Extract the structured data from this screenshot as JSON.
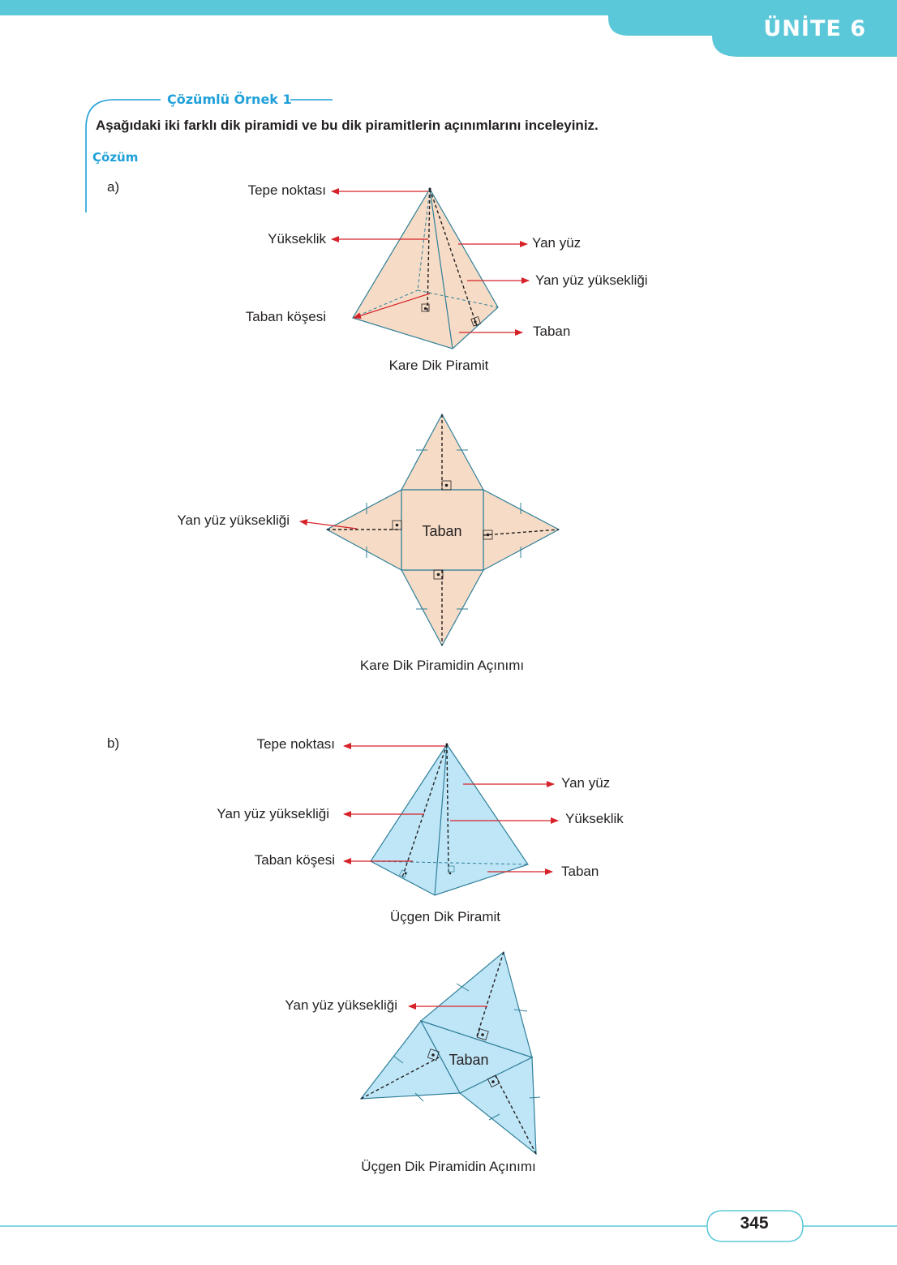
{
  "header": {
    "unit": "ÜNİTE 6",
    "accent_color": "#5bc8d9"
  },
  "example": {
    "title": "Çözümlü Örnek 1",
    "question": "Aşağıdaki iki farklı dik piramidi ve bu dik piramitlerin açınımlarını inceleyiniz.",
    "solution_label": "Çözüm"
  },
  "part_a": {
    "label": "a)",
    "pyramid": {
      "apex_label": "Tepe noktası",
      "height_label": "Yükseklik",
      "base_vertex_label": "Taban köşesi",
      "lateral_face_label": "Yan yüz",
      "slant_height_label": "Yan yüz yüksekliği",
      "base_label": "Taban",
      "caption": "Kare Dik Piramit",
      "fill_color": "#f6dcc6"
    },
    "net": {
      "slant_height_label": "Yan yüz yüksekliği",
      "base_label": "Taban",
      "caption": "Kare Dik Piramidin Açınımı"
    }
  },
  "part_b": {
    "label": "b)",
    "pyramid": {
      "apex_label": "Tepe noktası",
      "lateral_face_label": "Yan yüz",
      "slant_height_label": "Yan yüz yüksekliği",
      "height_label": "Yükseklik",
      "base_vertex_label": "Taban köşesi",
      "base_label": "Taban",
      "caption": "Üçgen Dik Piramit",
      "fill_color": "#bfe6f7"
    },
    "net": {
      "slant_height_label": "Yan yüz yüksekliği",
      "base_label": "Taban",
      "caption": "Üçgen Dik Piramidin Açınımı"
    }
  },
  "footer": {
    "page_number": "345"
  }
}
